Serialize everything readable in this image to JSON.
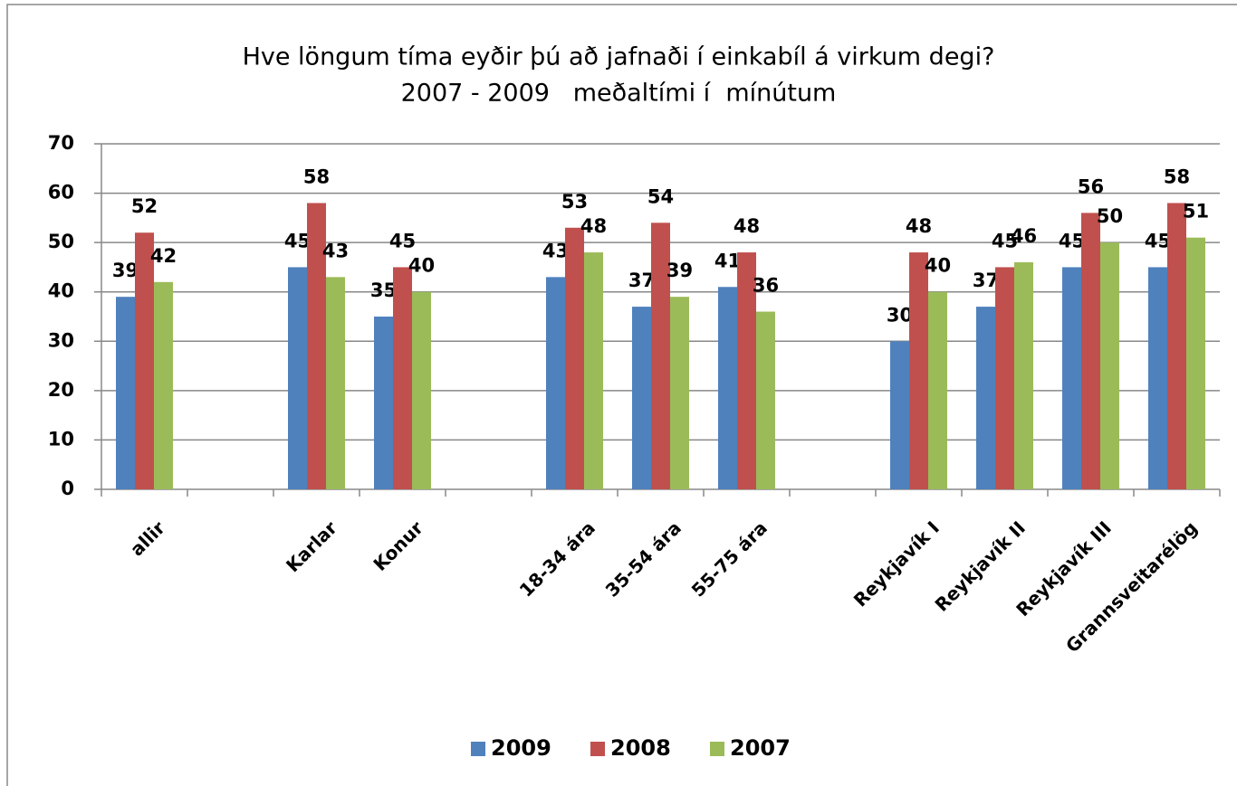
{
  "chart_data": {
    "type": "bar",
    "title": "Hve löngum tíma eyðir þú að jafnaði í einkabíl á virkum degi?",
    "subtitle": "2007 - 2009   meðaltími í  mínútum",
    "categories": [
      "allir",
      null,
      "Karlar",
      "Konur",
      null,
      "18-34 ára",
      "35-54 ára",
      "55-75 ára",
      null,
      "Reykjavík I",
      "Reykjavík II",
      "Reykjavík III",
      "Grannsveitarélög"
    ],
    "series": [
      {
        "name": "2009",
        "color": "#4f81bd",
        "values": [
          39,
          null,
          45,
          35,
          null,
          43,
          37,
          41,
          null,
          30,
          37,
          45,
          45
        ]
      },
      {
        "name": "2008",
        "color": "#c0504d",
        "values": [
          52,
          null,
          58,
          45,
          null,
          53,
          54,
          48,
          null,
          48,
          45,
          56,
          58
        ]
      },
      {
        "name": "2007",
        "color": "#9bbb59",
        "values": [
          42,
          null,
          43,
          40,
          null,
          48,
          39,
          36,
          null,
          40,
          46,
          50,
          51
        ]
      }
    ],
    "ylim": [
      0,
      70
    ],
    "yticks": [
      0,
      10,
      20,
      30,
      40,
      50,
      60,
      70
    ],
    "grid": true,
    "legend": "bottom"
  }
}
